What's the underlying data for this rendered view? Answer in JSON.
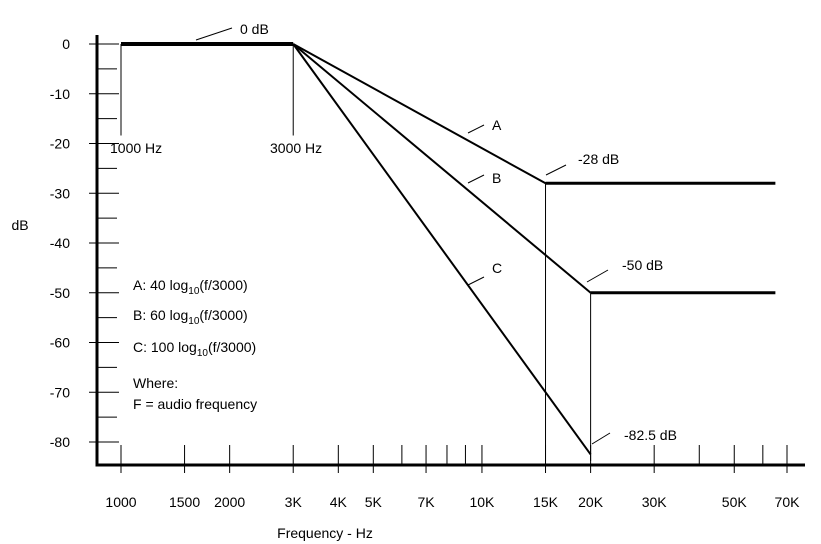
{
  "chart_data": {
    "type": "line",
    "xscale": "log",
    "xlabel": "Frequency - Hz",
    "ylabel": "dB",
    "ylim": [
      -85,
      0
    ],
    "xlim": [
      1000,
      70000
    ],
    "y_ticks": [
      {
        "value": 0,
        "label": "0"
      },
      {
        "value": -10,
        "label": "-10"
      },
      {
        "value": -20,
        "label": "-20"
      },
      {
        "value": -30,
        "label": "-30"
      },
      {
        "value": -40,
        "label": "-40"
      },
      {
        "value": -50,
        "label": "-50"
      },
      {
        "value": -60,
        "label": "-60"
      },
      {
        "value": -70,
        "label": "-70"
      },
      {
        "value": -80,
        "label": "-80"
      }
    ],
    "y_minor_ticks": [
      -5,
      -15,
      -25,
      -35,
      -45,
      -55,
      -65,
      -75
    ],
    "x_ticks": [
      {
        "value": 1000,
        "label": "1000"
      },
      {
        "value": 1500,
        "label": "1500"
      },
      {
        "value": 2000,
        "label": "2000"
      },
      {
        "value": 3000,
        "label": "3K"
      },
      {
        "value": 4000,
        "label": "4K"
      },
      {
        "value": 5000,
        "label": "5K"
      },
      {
        "value": 7000,
        "label": "7K"
      },
      {
        "value": 10000,
        "label": "10K"
      },
      {
        "value": 15000,
        "label": "15K"
      },
      {
        "value": 20000,
        "label": "20K"
      },
      {
        "value": 30000,
        "label": "30K"
      },
      {
        "value": 50000,
        "label": "50K"
      },
      {
        "value": 70000,
        "label": "70K"
      }
    ],
    "x_minor_ticks": [
      6000,
      8000,
      9000,
      40000,
      60000
    ],
    "flat_segment": {
      "x": [
        1000,
        3000
      ],
      "y": [
        0,
        0
      ]
    },
    "series": [
      {
        "name": "A",
        "x": [
          3000,
          15000,
          65000
        ],
        "y": [
          0,
          -28,
          -28
        ]
      },
      {
        "name": "B",
        "x": [
          3000,
          20000,
          65000
        ],
        "y": [
          0,
          -50,
          -50
        ]
      },
      {
        "name": "C",
        "x": [
          3000,
          20000
        ],
        "y": [
          0,
          -82.5
        ]
      }
    ],
    "vertical_markers": [
      {
        "x": 1000,
        "y_top": 0,
        "y_bottom": -20
      },
      {
        "x": 3000,
        "y_top": 0,
        "y_bottom": -20
      },
      {
        "x": 15000,
        "y_top": -28,
        "y_bottom": -85
      },
      {
        "x": 20000,
        "y_top": -50,
        "y_bottom": -85
      }
    ],
    "annotations": [
      {
        "text": "0 dB",
        "x": 2000,
        "y": 0
      },
      {
        "text": "1000 Hz",
        "x": 1000,
        "y": -20
      },
      {
        "text": "3000 Hz",
        "x": 3000,
        "y": -20
      },
      {
        "text": "-28 dB",
        "x": 15000,
        "y": -28
      },
      {
        "text": "-50 dB",
        "x": 20000,
        "y": -50
      },
      {
        "text": "-82.5 dB",
        "x": 20000,
        "y": -82.5
      }
    ],
    "legend_lines": [
      {
        "prefix": "A: 40 log",
        "sub": "10",
        "suffix": "(f/3000)"
      },
      {
        "prefix": "B: 60 log",
        "sub": "10",
        "suffix": "(f/3000)"
      },
      {
        "prefix": "C: 100 log",
        "sub": "10",
        "suffix": "(f/3000)"
      }
    ],
    "where_lines": [
      "Where:",
      "F = audio frequency"
    ],
    "grid": false
  }
}
